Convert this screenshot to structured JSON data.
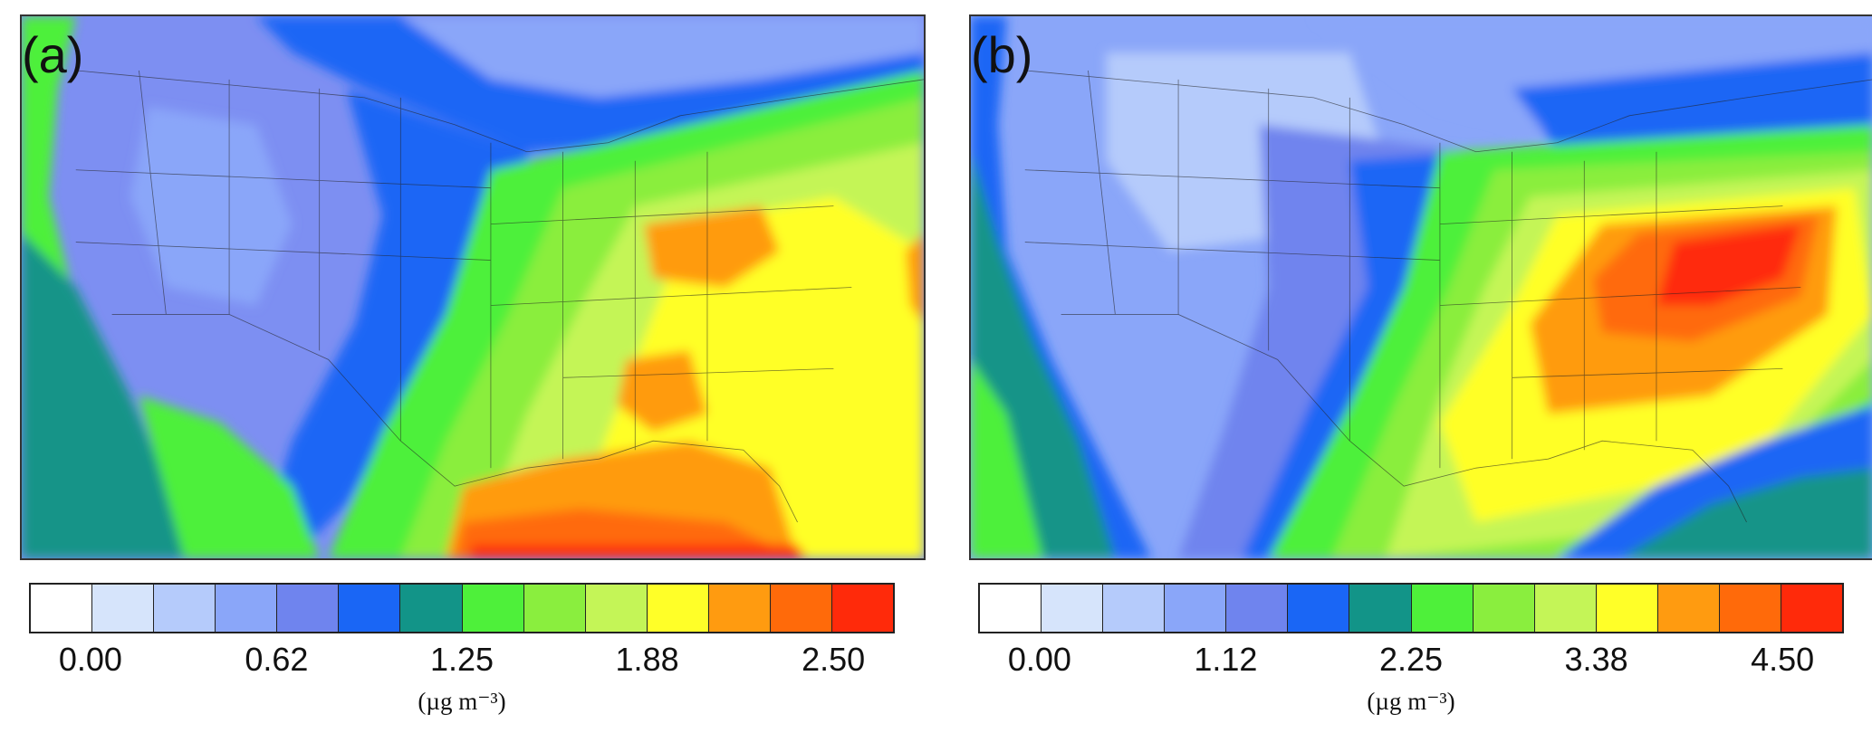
{
  "panels": [
    {
      "label": "(a)",
      "colorbar": {
        "colors": [
          "#ffffff",
          "#d6e4fb",
          "#b5cbfb",
          "#8aa6f9",
          "#6f84ee",
          "#1a66f5",
          "#129488",
          "#4ef03a",
          "#8aee3e",
          "#c4f557",
          "#ffff28",
          "#ff9b10",
          "#ff6a0a",
          "#ff2a0a"
        ],
        "tick_labels": [
          "0.00",
          "0.62",
          "1.25",
          "1.88",
          "2.50"
        ],
        "units": "(µg m⁻³)"
      }
    },
    {
      "label": "(b)",
      "colorbar": {
        "colors": [
          "#ffffff",
          "#d6e4fb",
          "#b5cbfb",
          "#8aa6f9",
          "#6f84ee",
          "#1a66f5",
          "#129488",
          "#4ef03a",
          "#8aee3e",
          "#c4f557",
          "#ffff28",
          "#ff9b10",
          "#ff6a0a",
          "#ff2a0a"
        ],
        "tick_labels": [
          "0.00",
          "1.12",
          "2.25",
          "3.38",
          "4.50"
        ],
        "units": "(µg m⁻³)"
      }
    }
  ]
}
